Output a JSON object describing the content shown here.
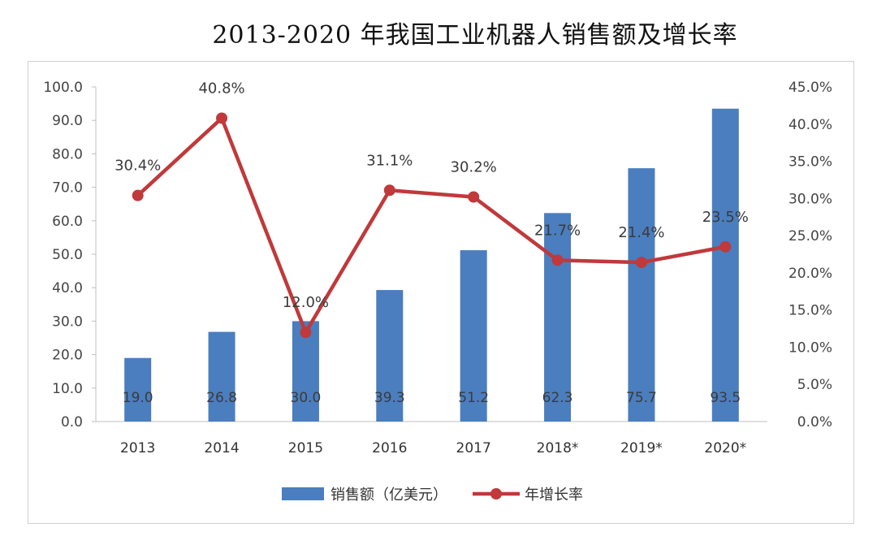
{
  "title": "2013-2020 年我国工业机器人销售额及增长率",
  "chart_data": {
    "type": "bar+line",
    "categories": [
      "2013",
      "2014",
      "2015",
      "2016",
      "2017",
      "2018*",
      "2019*",
      "2020*"
    ],
    "series": [
      {
        "name": "销售额（亿美元）",
        "type": "bar",
        "axis": "left",
        "color": "#4a7ebf",
        "values": [
          19.0,
          26.8,
          30.0,
          39.3,
          51.2,
          62.3,
          75.7,
          93.5
        ],
        "labels": [
          "19.0",
          "26.8",
          "30.0",
          "39.3",
          "51.2",
          "62.3",
          "75.7",
          "93.5"
        ]
      },
      {
        "name": "年增长率",
        "type": "line",
        "axis": "right",
        "color": "#c0393b",
        "values": [
          30.4,
          40.8,
          12.0,
          31.1,
          30.2,
          21.7,
          21.4,
          23.5
        ],
        "labels": [
          "30.4%",
          "40.8%",
          "12.0%",
          "31.1%",
          "30.2%",
          "21.7%",
          "21.4%",
          "23.5%"
        ]
      }
    ],
    "y_left": {
      "min": 0,
      "max": 100,
      "step": 10,
      "ticks": [
        "0.0",
        "10.0",
        "20.0",
        "30.0",
        "40.0",
        "50.0",
        "60.0",
        "70.0",
        "80.0",
        "90.0",
        "100.0"
      ]
    },
    "y_right": {
      "min": 0,
      "max": 45,
      "step": 5,
      "ticks": [
        "0.0%",
        "5.0%",
        "10.0%",
        "15.0%",
        "20.0%",
        "25.0%",
        "30.0%",
        "35.0%",
        "40.0%",
        "45.0%"
      ]
    },
    "grid": false,
    "legend_position": "bottom"
  }
}
